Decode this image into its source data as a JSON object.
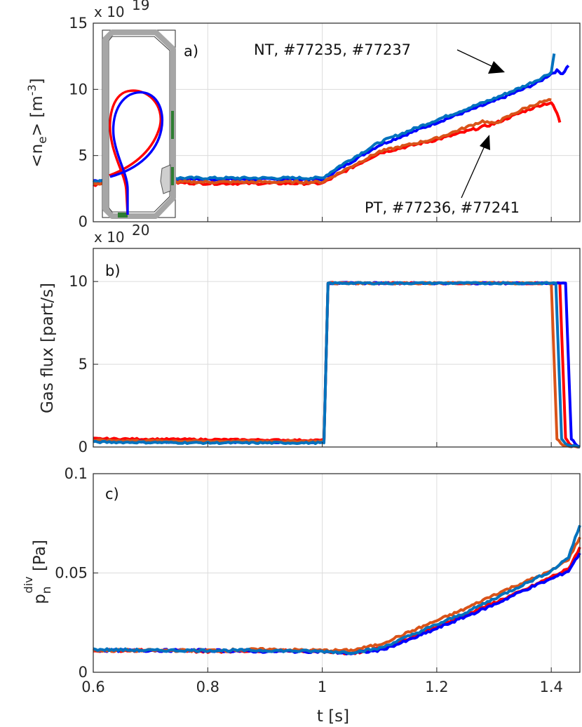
{
  "colors": {
    "nt_blue": "#0000ff",
    "nt_lightblue": "#0072bd",
    "pt_red": "#ff0000",
    "pt_orange": "#d95319",
    "inset_wall": "#a6a6a6",
    "inset_marker": "#2e7d32"
  },
  "chart_data": [
    {
      "type": "line",
      "panel_label": "a)",
      "ylabel": "<n_e> [m^-3]",
      "exponent": "x 10^19",
      "xlim": [
        0.6,
        1.45
      ],
      "ylim": [
        0,
        15
      ],
      "yticks": [
        0,
        5,
        10,
        15
      ],
      "grid": true,
      "annotations": [
        "NT, #77235, #77237",
        "PT, #77236, #77241"
      ],
      "series": [
        {
          "color": "#0000ff",
          "group": "NT",
          "x": [
            0.6,
            0.65,
            0.7,
            0.8,
            0.9,
            1.0,
            1.03,
            1.1,
            1.2,
            1.3,
            1.35,
            1.38,
            1.4,
            1.41,
            1.42,
            1.43
          ],
          "y": [
            3.1,
            3.2,
            3.2,
            3.2,
            3.2,
            3.2,
            4.0,
            5.8,
            7.5,
            9.1,
            10.0,
            10.6,
            11.2,
            11.4,
            11.2,
            11.8
          ]
        },
        {
          "color": "#0072bd",
          "group": "NT",
          "x": [
            0.6,
            0.65,
            0.7,
            0.8,
            0.9,
            1.0,
            1.03,
            1.1,
            1.2,
            1.3,
            1.35,
            1.38,
            1.4,
            1.405
          ],
          "y": [
            3.0,
            3.2,
            3.3,
            3.3,
            3.3,
            3.3,
            4.2,
            6.0,
            7.7,
            9.3,
            10.2,
            10.8,
            11.3,
            12.7
          ]
        },
        {
          "color": "#ff0000",
          "group": "PT",
          "x": [
            0.6,
            0.65,
            0.7,
            0.8,
            0.9,
            1.0,
            1.03,
            1.1,
            1.2,
            1.3,
            1.35,
            1.38,
            1.4,
            1.41,
            1.415
          ],
          "y": [
            2.8,
            3.0,
            3.0,
            2.9,
            2.9,
            2.9,
            3.6,
            5.2,
            6.2,
            7.4,
            8.3,
            8.8,
            9.0,
            8.2,
            7.5
          ]
        },
        {
          "color": "#d95319",
          "group": "PT",
          "x": [
            0.6,
            0.65,
            0.7,
            0.8,
            0.9,
            1.0,
            1.03,
            1.1,
            1.2,
            1.28,
            1.3,
            1.35,
            1.38,
            1.4
          ],
          "y": [
            2.9,
            3.0,
            3.0,
            3.0,
            3.0,
            3.0,
            3.7,
            5.3,
            6.3,
            7.6,
            7.4,
            8.5,
            9.0,
            9.2
          ]
        }
      ]
    },
    {
      "type": "line",
      "panel_label": "b)",
      "ylabel": "Gas flux [part/s]",
      "exponent": "x 10^20",
      "xlim": [
        0.6,
        1.45
      ],
      "ylim": [
        0,
        12
      ],
      "yticks": [
        0,
        5,
        10
      ],
      "grid": true,
      "series": [
        {
          "color": "#ff0000",
          "x": [
            0.6,
            0.8,
            1.0,
            1.003,
            1.01,
            1.2,
            1.4,
            1.415,
            1.425,
            1.435,
            1.45
          ],
          "y": [
            0.5,
            0.45,
            0.4,
            0.4,
            9.9,
            9.9,
            9.9,
            9.9,
            0.5,
            0.1,
            0.0
          ]
        },
        {
          "color": "#0000ff",
          "x": [
            0.6,
            0.8,
            1.0,
            1.003,
            1.01,
            1.2,
            1.4,
            1.425,
            1.435,
            1.445,
            1.45
          ],
          "y": [
            0.35,
            0.3,
            0.3,
            0.3,
            9.9,
            9.9,
            9.9,
            9.9,
            0.5,
            0.1,
            0.0
          ]
        },
        {
          "color": "#d95319",
          "x": [
            0.6,
            0.8,
            1.0,
            1.003,
            1.01,
            1.2,
            1.39,
            1.4,
            1.41,
            1.42,
            1.45
          ],
          "y": [
            0.4,
            0.35,
            0.35,
            0.35,
            9.9,
            9.9,
            9.9,
            9.9,
            0.5,
            0.1,
            0.0
          ]
        },
        {
          "color": "#0072bd",
          "x": [
            0.6,
            0.8,
            1.0,
            1.003,
            1.01,
            1.2,
            1.4,
            1.408,
            1.418,
            1.428,
            1.45
          ],
          "y": [
            0.3,
            0.25,
            0.25,
            0.25,
            9.9,
            9.9,
            9.9,
            9.9,
            0.5,
            0.1,
            0.0
          ]
        }
      ]
    },
    {
      "type": "line",
      "panel_label": "c)",
      "ylabel": "p_n^div [Pa]",
      "xlabel": "t [s]",
      "xlim": [
        0.6,
        1.45
      ],
      "ylim": [
        0,
        0.1
      ],
      "yticks": [
        0,
        0.05,
        0.1
      ],
      "xticks": [
        0.6,
        0.8,
        1.0,
        1.2,
        1.4
      ],
      "xtick_labels": [
        "0.6",
        "0.8",
        "1",
        "1.2",
        "1.4"
      ],
      "ytick_labels": [
        "0",
        "0.05",
        "0.1"
      ],
      "grid": true,
      "series": [
        {
          "color": "#ff0000",
          "x": [
            0.6,
            0.7,
            0.8,
            0.9,
            1.0,
            1.05,
            1.1,
            1.15,
            1.2,
            1.25,
            1.3,
            1.35,
            1.4,
            1.43,
            1.45
          ],
          "y": [
            0.011,
            0.011,
            0.0105,
            0.011,
            0.0105,
            0.0095,
            0.012,
            0.017,
            0.023,
            0.029,
            0.035,
            0.041,
            0.048,
            0.052,
            0.063
          ]
        },
        {
          "color": "#0000ff",
          "x": [
            0.6,
            0.7,
            0.8,
            0.9,
            1.0,
            1.05,
            1.1,
            1.15,
            1.2,
            1.25,
            1.3,
            1.35,
            1.4,
            1.43,
            1.45
          ],
          "y": [
            0.011,
            0.011,
            0.011,
            0.0105,
            0.0105,
            0.0095,
            0.011,
            0.016,
            0.022,
            0.028,
            0.034,
            0.041,
            0.047,
            0.051,
            0.06
          ]
        },
        {
          "color": "#d95319",
          "x": [
            0.6,
            0.7,
            0.8,
            0.9,
            1.0,
            1.05,
            1.1,
            1.15,
            1.2,
            1.25,
            1.3,
            1.35,
            1.4,
            1.43,
            1.45
          ],
          "y": [
            0.011,
            0.011,
            0.011,
            0.0115,
            0.011,
            0.011,
            0.014,
            0.02,
            0.026,
            0.032,
            0.039,
            0.045,
            0.051,
            0.057,
            0.068
          ]
        },
        {
          "color": "#0072bd",
          "x": [
            0.6,
            0.7,
            0.8,
            0.9,
            1.0,
            1.05,
            1.1,
            1.15,
            1.2,
            1.25,
            1.3,
            1.35,
            1.4,
            1.43,
            1.45
          ],
          "y": [
            0.0115,
            0.011,
            0.011,
            0.011,
            0.0105,
            0.01,
            0.012,
            0.018,
            0.024,
            0.03,
            0.037,
            0.044,
            0.051,
            0.058,
            0.074
          ]
        }
      ]
    }
  ],
  "text": {
    "a_label": "a)",
    "b_label": "b)",
    "c_label": "c)",
    "a_exp_base": "x 10",
    "a_exp_power": "19",
    "b_exp_base": "x 10",
    "b_exp_power": "20",
    "a_ylabel_main": "<n",
    "a_ylabel_sub": "e",
    "a_ylabel_end": "> [m",
    "a_ylabel_sup": "-3",
    "a_ylabel_close": "]",
    "b_ylabel": "Gas flux [part/s]",
    "c_ylabel_main": "p",
    "c_ylabel_sub": "n",
    "c_ylabel_sup": "div",
    "c_ylabel_end": " [Pa]",
    "xlabel": "t [s]",
    "nt_annotation": "NT, #77235, #77237",
    "pt_annotation": "PT, #77236, #77241",
    "a_yticks": [
      "0",
      "5",
      "10",
      "15"
    ],
    "b_yticks": [
      "0",
      "5",
      "10"
    ],
    "c_yticks": [
      "0",
      "0.05",
      "0.1"
    ],
    "xticks": [
      "0.6",
      "0.8",
      "1",
      "1.2",
      "1.4"
    ]
  }
}
